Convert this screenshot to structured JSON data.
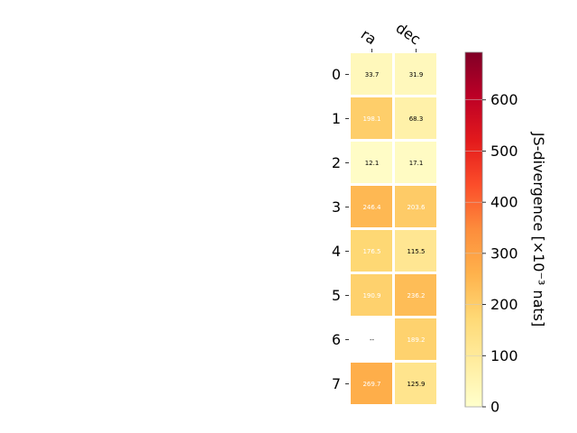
{
  "chart_data": {
    "type": "heatmap",
    "x_categories": [
      "ra",
      "dec"
    ],
    "y_categories": [
      "0",
      "1",
      "2",
      "3",
      "4",
      "5",
      "6",
      "7"
    ],
    "values": [
      [
        33.7,
        31.9
      ],
      [
        198.1,
        68.3
      ],
      [
        12.1,
        17.1
      ],
      [
        246.4,
        203.6
      ],
      [
        176.5,
        115.5
      ],
      [
        190.9,
        236.2
      ],
      [
        null,
        189.2
      ],
      [
        269.7,
        125.9
      ]
    ],
    "cell_labels": [
      [
        "33.7",
        "31.9"
      ],
      [
        "198.1",
        "68.3"
      ],
      [
        "12.1",
        "17.1"
      ],
      [
        "246.4",
        "203.6"
      ],
      [
        "176.5",
        "115.5"
      ],
      [
        "190.9",
        "236.2"
      ],
      [
        "--",
        "189.2"
      ],
      [
        "269.7",
        "125.9"
      ]
    ],
    "colorbar": {
      "label": "JS-divergence [×10⁻³ nats]",
      "range": [
        0,
        693
      ],
      "ticks": [
        0,
        100,
        200,
        300,
        400,
        500,
        600
      ],
      "tick_labels": [
        "0",
        "100",
        "200",
        "300",
        "400",
        "500",
        "600"
      ],
      "colormap": "YlOrRd"
    },
    "grid": false
  }
}
